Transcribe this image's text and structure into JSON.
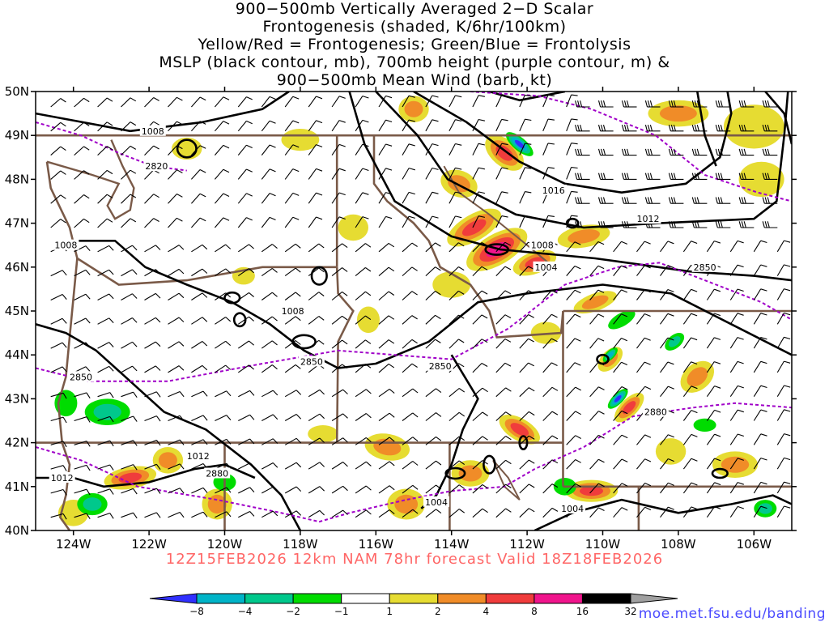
{
  "title_lines": [
    "900−500mb Vertically Averaged 2−D Scalar",
    "Frontogenesis (shaded, K/6hr/100km)",
    "Yellow/Red = Frontogenesis;  Green/Blue = Frontolysis",
    "MSLP (black contour, mb), 700mb height (purple contour, m) &",
    "900−500mb Mean Wind (barb, kt)"
  ],
  "footer": "12Z15FEB2026 12km NAM 78hr forecast Valid 18Z18FEB2026",
  "url": "moe.met.fsu.edu/banding",
  "map": {
    "lon_range": [
      -125,
      -105
    ],
    "lat_range": [
      40,
      50
    ],
    "lat_labels": [
      "50N",
      "49N",
      "48N",
      "47N",
      "46N",
      "45N",
      "44N",
      "43N",
      "42N",
      "41N",
      "40N"
    ],
    "lon_labels": [
      "124W",
      "122W",
      "120W",
      "118W",
      "116W",
      "114W",
      "112W",
      "110W",
      "108W",
      "106W"
    ],
    "mslp_labels": [
      "1008",
      "1016",
      "1012",
      "1008",
      "1004",
      "1008",
      "1008",
      "1012",
      "1012",
      "1004",
      "1004"
    ],
    "height_labels": [
      "2820",
      "2850",
      "2850",
      "2850",
      "2850",
      "2880",
      "2880"
    ],
    "colors": {
      "mslp": "#000000",
      "height": "#a000c8",
      "borders": "#7a5a48",
      "barbs": "#000000"
    }
  },
  "colorbar": {
    "labels": [
      "−8",
      "−4",
      "−2",
      "−1",
      "1",
      "2",
      "4",
      "8",
      "16",
      "32"
    ],
    "colors": [
      "#3030ff",
      "#00b4c8",
      "#00c88c",
      "#00dc00",
      "#ffffff",
      "#e6dc32",
      "#f08c28",
      "#f03c3c",
      "#f0148c",
      "#000000",
      "#a0a0a0"
    ]
  }
}
